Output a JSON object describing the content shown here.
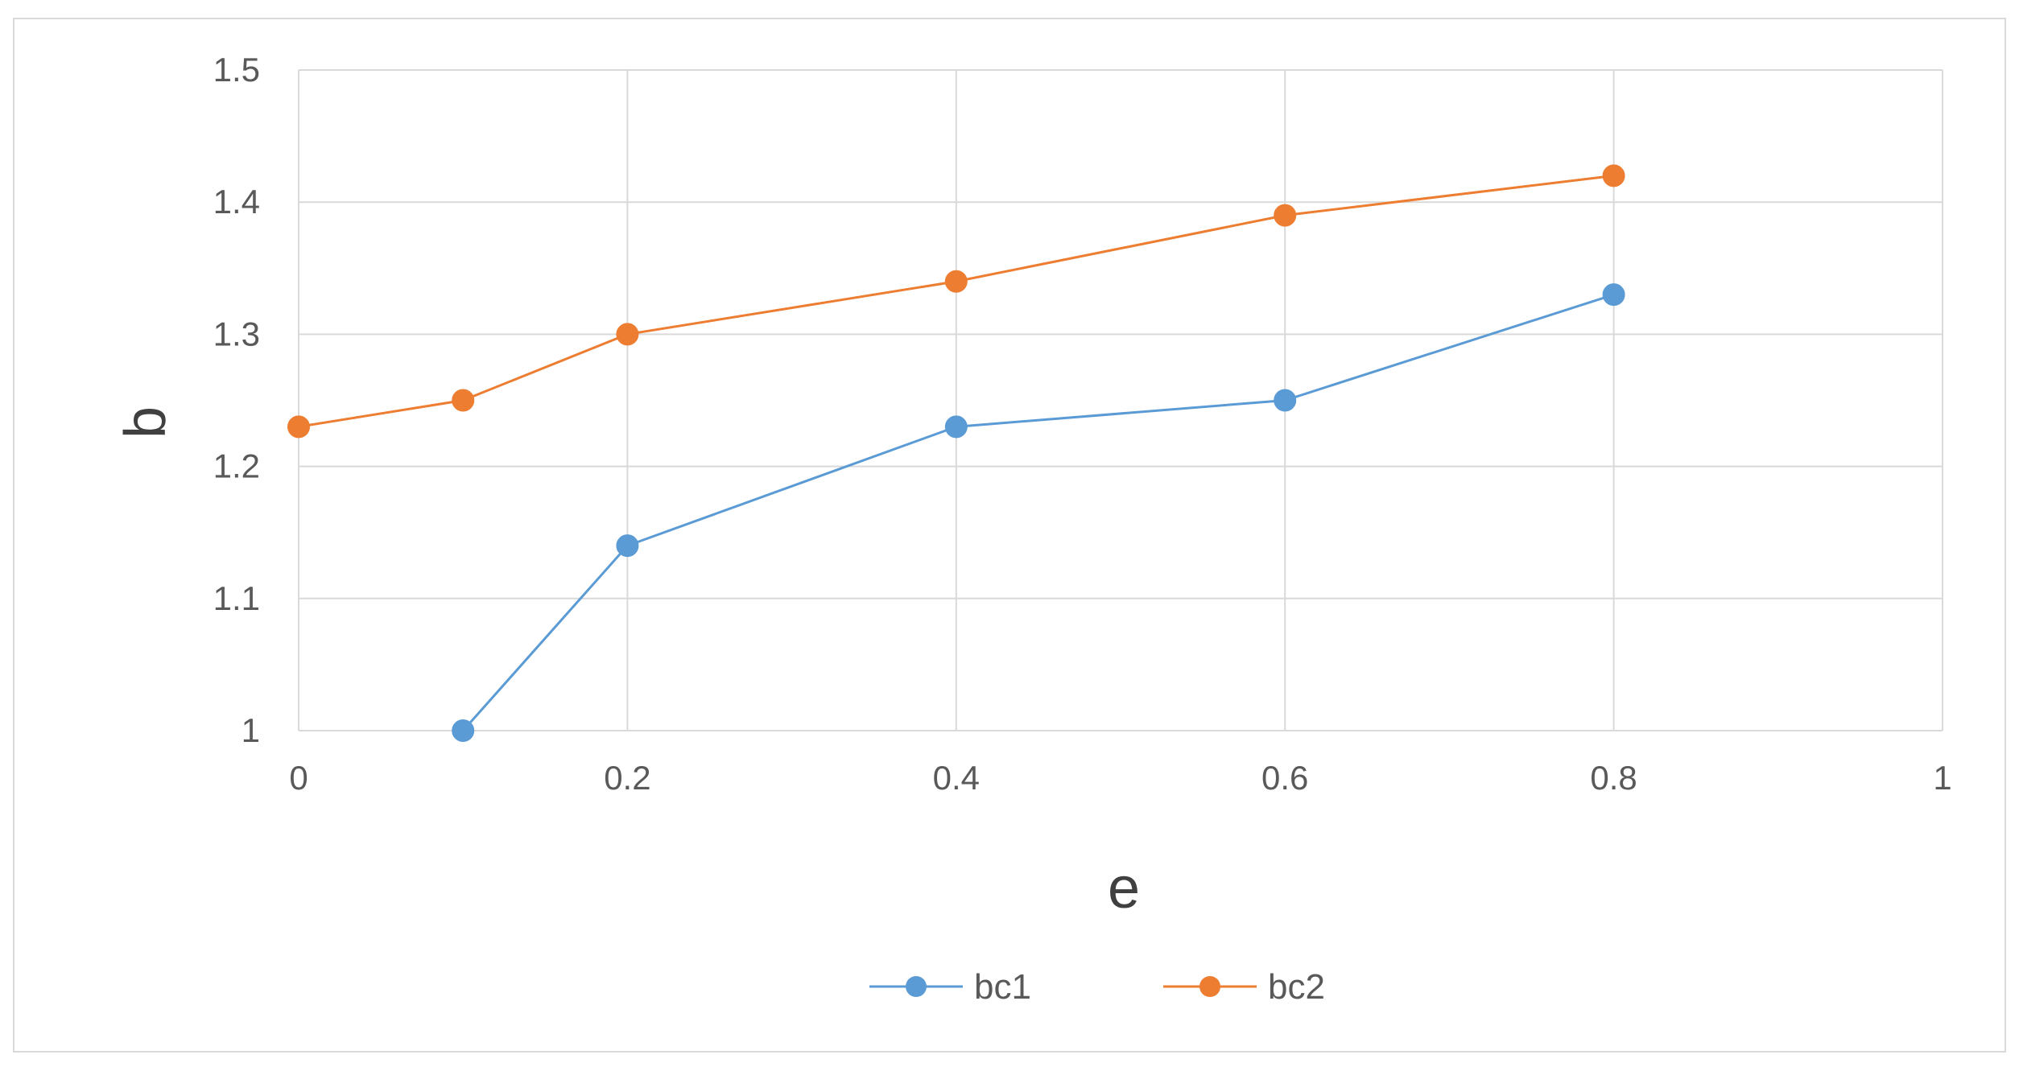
{
  "chart_data": {
    "type": "line",
    "title": "",
    "xlabel": "e",
    "ylabel": "b",
    "xlim": [
      0,
      1
    ],
    "ylim": [
      1,
      1.5
    ],
    "x_ticks": [
      "0",
      "0.2",
      "0.4",
      "0.6",
      "0.8",
      "1"
    ],
    "y_ticks": [
      "1",
      "1.1",
      "1.2",
      "1.3",
      "1.4",
      "1.5"
    ],
    "grid": true,
    "legend_position": "bottom",
    "series": [
      {
        "name": "bc1",
        "color": "#5b9bd5",
        "x": [
          0.1,
          0.2,
          0.4,
          0.6,
          0.8
        ],
        "y": [
          1.0,
          1.14,
          1.23,
          1.25,
          1.33
        ]
      },
      {
        "name": "bc2",
        "color": "#ed7d31",
        "x": [
          0,
          0.1,
          0.2,
          0.4,
          0.6,
          0.8
        ],
        "y": [
          1.23,
          1.25,
          1.3,
          1.34,
          1.39,
          1.42
        ]
      }
    ]
  }
}
